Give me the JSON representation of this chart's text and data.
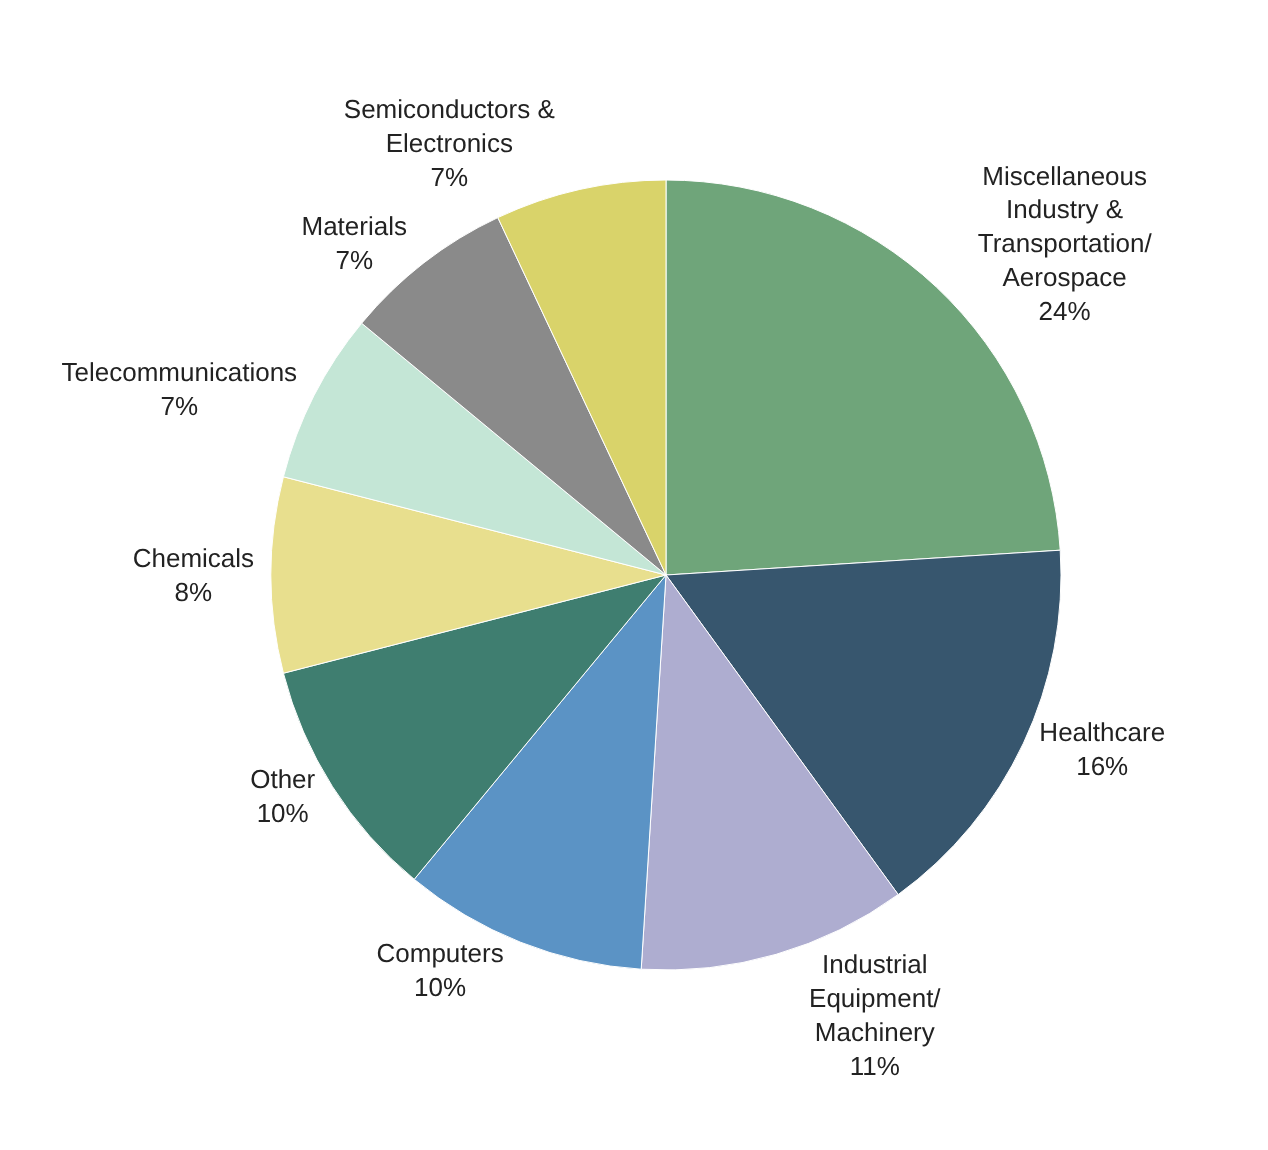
{
  "chart_data": {
    "type": "pie",
    "categories": [
      "Miscellaneous\nIndustry &\nTransportation/\nAerospace",
      "Healthcare",
      "Industrial\nEquipment/\nMachinery",
      "Computers",
      "Other",
      "Chemicals",
      "Telecommunications",
      "Materials",
      "Semiconductors &\nElectronics"
    ],
    "values": [
      24,
      16,
      11,
      10,
      10,
      8,
      7,
      7,
      7
    ],
    "value_labels": [
      "24%",
      "16%",
      "11%",
      "10%",
      "10%",
      "8%",
      "7%",
      "7%",
      "7%"
    ],
    "colors": [
      "#6fa57a",
      "#37566e",
      "#aeadd0",
      "#5b93c5",
      "#3f7e70",
      "#e8df8e",
      "#c4e6d6",
      "#8a8a8a",
      "#d9d36a"
    ],
    "legend": false
  }
}
